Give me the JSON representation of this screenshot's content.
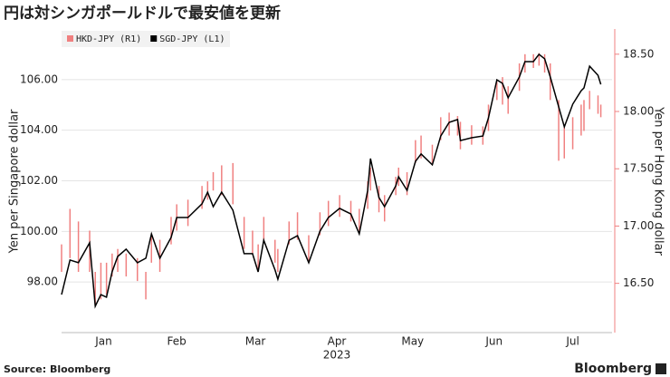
{
  "chart_data": {
    "type": "dual-axis-line-bar",
    "title": "円は対シンガポールドルで最安値を更新",
    "ylabel": "Yen per Singapore dollar",
    "y2label": "Yen per Hong Kong dollar",
    "xlabel": "2023",
    "source": "Source: Bloomberg",
    "brand": "Bloomberg",
    "xlim": [
      1,
      197
    ],
    "xticks": [
      {
        "value": 16,
        "label": "Jan"
      },
      {
        "value": 42,
        "label": "Feb"
      },
      {
        "value": 70,
        "label": "Mar"
      },
      {
        "value": 99,
        "label": "Apr"
      },
      {
        "value": 126,
        "label": "May"
      },
      {
        "value": 155,
        "label": "Jun"
      },
      {
        "value": 183,
        "label": "Jul"
      }
    ],
    "ylim": [
      96,
      108
    ],
    "yticks": [
      {
        "value": 98,
        "label": "98.00"
      },
      {
        "value": 100,
        "label": "100.00"
      },
      {
        "value": 102,
        "label": "102.00"
      },
      {
        "value": 104,
        "label": "104.00"
      },
      {
        "value": 106,
        "label": "106.00"
      }
    ],
    "y2lim": [
      16.07,
      18.72
    ],
    "y2ticks": [
      {
        "value": 16.5,
        "label": "16.50"
      },
      {
        "value": 17,
        "label": "17.00"
      },
      {
        "value": 17.5,
        "label": "17.50"
      },
      {
        "value": 18,
        "label": "18.00"
      },
      {
        "value": 18.5,
        "label": "18.50"
      }
    ],
    "grid": true,
    "legend": "top-left",
    "x": [
      1,
      4,
      7,
      11,
      13,
      15,
      17,
      19,
      21,
      24,
      28,
      31,
      33,
      36,
      40,
      42,
      46,
      51,
      53,
      55,
      58,
      62,
      66,
      69,
      71,
      73,
      77,
      78,
      82,
      85,
      89,
      93,
      96,
      100,
      104,
      107,
      110,
      111,
      114,
      116,
      120,
      121,
      124,
      127,
      129,
      133,
      136,
      139,
      142,
      143,
      147,
      151,
      153,
      156,
      158,
      160,
      164,
      166,
      169,
      171,
      173,
      175,
      178,
      180,
      183,
      186,
      187,
      189,
      192,
      193
    ],
    "series": [
      {
        "name": "HKD-JPY (R1)",
        "color": "#f08080",
        "axis": "y2",
        "style": "range-bar",
        "high": [
          16.84,
          17.15,
          17.04,
          16.96,
          16.6,
          16.68,
          16.68,
          16.76,
          16.8,
          16.76,
          16.72,
          16.6,
          16.92,
          16.88,
          17.08,
          17.19,
          17.23,
          17.35,
          17.39,
          17.47,
          17.53,
          17.55,
          17.08,
          16.96,
          16.84,
          17.08,
          16.88,
          16.8,
          17.04,
          17.12,
          16.92,
          17.12,
          17.22,
          17.27,
          17.22,
          17.15,
          17.39,
          17.51,
          17.35,
          17.27,
          17.43,
          17.51,
          17.47,
          17.75,
          17.79,
          17.71,
          17.95,
          17.99,
          17.96,
          17.91,
          17.88,
          17.87,
          18.06,
          18.26,
          18.3,
          18.22,
          18.42,
          18.5,
          18.5,
          18.51,
          18.5,
          18.42,
          18.1,
          17.87,
          17.95,
          18.06,
          18.1,
          18.18,
          18.14,
          18.06
        ],
        "low": [
          16.6,
          16.72,
          16.6,
          16.6,
          16.32,
          16.36,
          16.4,
          16.56,
          16.6,
          16.56,
          16.52,
          16.36,
          16.68,
          16.6,
          16.84,
          16.96,
          17.0,
          17.15,
          17.23,
          17.31,
          17.27,
          17.19,
          16.8,
          16.76,
          16.6,
          16.88,
          16.68,
          16.6,
          16.84,
          16.88,
          16.68,
          16.92,
          17.0,
          17.08,
          17.04,
          16.96,
          17.15,
          17.31,
          17.12,
          17.04,
          17.27,
          17.35,
          17.27,
          17.55,
          17.59,
          17.55,
          17.75,
          17.79,
          17.79,
          17.67,
          17.71,
          17.71,
          17.83,
          18.1,
          18.06,
          17.98,
          18.18,
          18.34,
          18.38,
          18.4,
          18.34,
          18.1,
          17.57,
          17.59,
          17.67,
          17.79,
          17.83,
          18.02,
          17.98,
          17.95
        ]
      },
      {
        "name": "SGD-JPY (L1)",
        "color": "#000000",
        "axis": "y",
        "style": "line",
        "values": [
          97.5,
          98.87,
          98.76,
          99.55,
          97.04,
          97.5,
          97.4,
          98.4,
          99.01,
          99.3,
          98.76,
          98.94,
          99.9,
          98.94,
          99.76,
          100.55,
          100.55,
          101.09,
          101.55,
          100.98,
          101.55,
          100.84,
          99.12,
          99.12,
          98.4,
          99.65,
          98.47,
          98.11,
          99.65,
          99.83,
          98.76,
          100.01,
          100.55,
          100.91,
          100.69,
          99.9,
          101.62,
          102.88,
          101.34,
          100.98,
          101.8,
          102.16,
          101.62,
          102.77,
          103.06,
          102.63,
          103.77,
          104.31,
          104.42,
          103.59,
          103.7,
          103.77,
          104.49,
          105.99,
          105.85,
          105.28,
          106.1,
          106.71,
          106.71,
          107.0,
          106.82,
          106.1,
          104.92,
          104.13,
          105.03,
          105.56,
          105.67,
          106.53,
          106.17,
          105.81
        ]
      }
    ]
  }
}
